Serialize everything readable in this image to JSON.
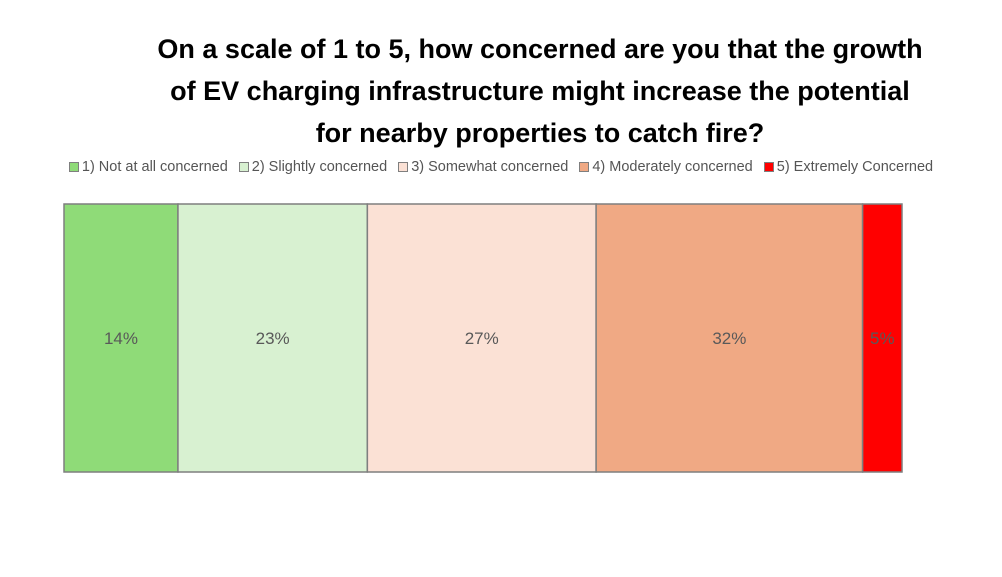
{
  "chart_data": {
    "type": "bar",
    "orientation": "horizontal-stacked",
    "title_lines": [
      "On a scale of 1 to 5, how concerned are you that the growth",
      "of EV charging infrastructure might increase the potential",
      "for nearby properties to catch fire?"
    ],
    "legend_position": "top",
    "grid": false,
    "value_unit": "%",
    "xlim": [
      0,
      100
    ],
    "series": [
      {
        "name": "1) Not at all concerned",
        "values": [
          13.6
        ],
        "label": "14%",
        "color": "#8fdb78"
      },
      {
        "name": "2) Slightly concerned",
        "values": [
          22.6
        ],
        "label": "23%",
        "color": "#d8f1d1"
      },
      {
        "name": "3) Somewhat concerned",
        "values": [
          27.3
        ],
        "label": "27%",
        "color": "#fbe1d5"
      },
      {
        "name": "4) Moderately concerned",
        "values": [
          31.8
        ],
        "label": "32%",
        "color": "#f0a984"
      },
      {
        "name": "5) Extremely Concerned",
        "values": [
          4.7
        ],
        "label": "5%",
        "color": "#ff0000"
      }
    ],
    "label_color": "#595959",
    "border_color": "#7f7f7f"
  }
}
